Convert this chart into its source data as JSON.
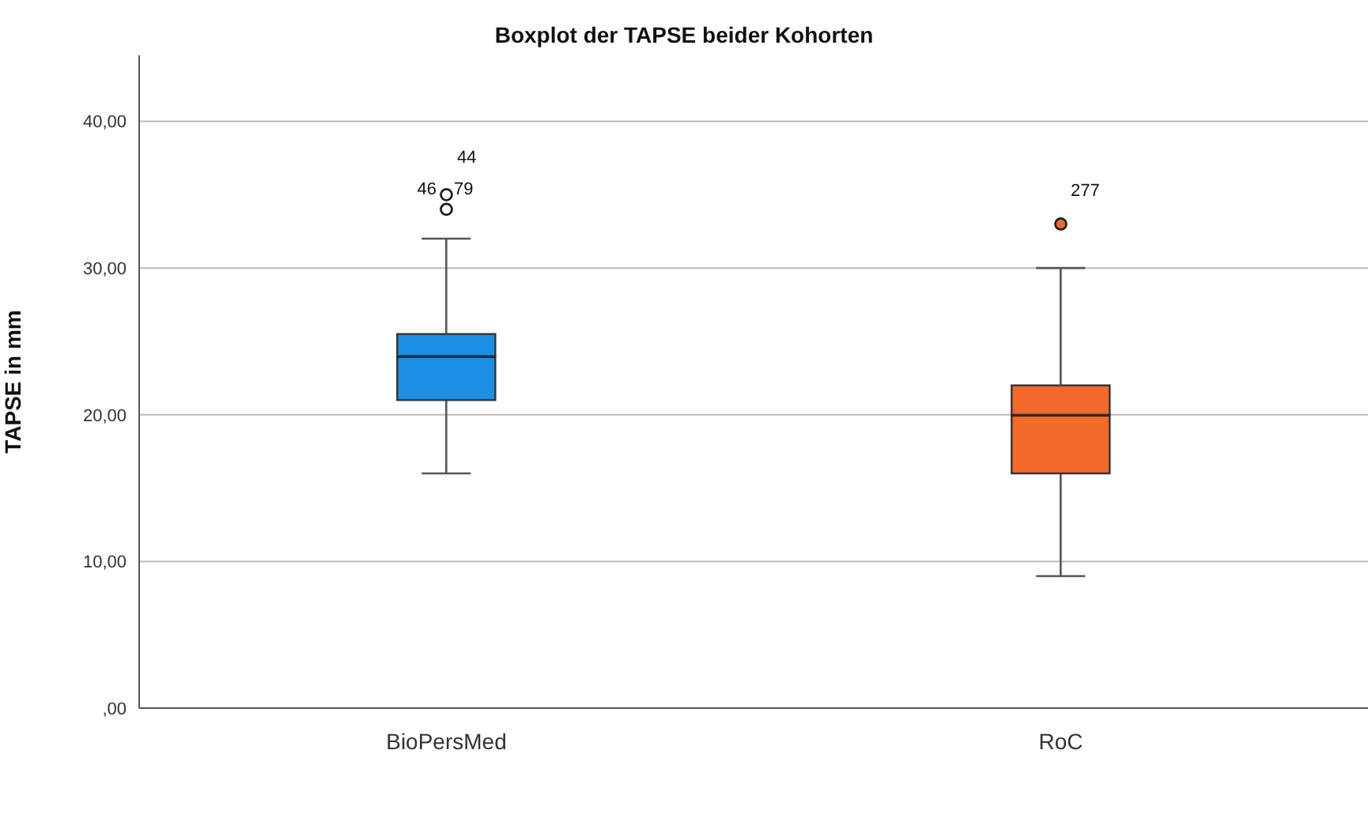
{
  "chart_data": {
    "type": "box",
    "title": "Boxplot der TAPSE beider Kohorten",
    "ylabel": "TAPSE in mm",
    "categories": [
      "BioPersMed",
      "RoC"
    ],
    "colors": [
      "#1a8fe3",
      "#f26a2c"
    ],
    "boxes": [
      {
        "low": 16,
        "q1": 21,
        "median": 24,
        "q3": 25.5,
        "high": 32,
        "outliers": [
          34,
          35
        ]
      },
      {
        "low": 9,
        "q1": 16,
        "median": 20,
        "q3": 22,
        "high": 30,
        "outliers": [
          33
        ]
      }
    ],
    "ylim": [
      0,
      44.5
    ],
    "yticks": [
      {
        "value": 0,
        "label": ",00"
      },
      {
        "value": 10,
        "label": "10,00"
      },
      {
        "value": 20,
        "label": "20,00"
      },
      {
        "value": 30,
        "label": "30,00"
      },
      {
        "value": 40,
        "label": "40,00"
      }
    ],
    "grid": "y",
    "annotations": [
      "46",
      "79",
      "44",
      "277"
    ]
  }
}
